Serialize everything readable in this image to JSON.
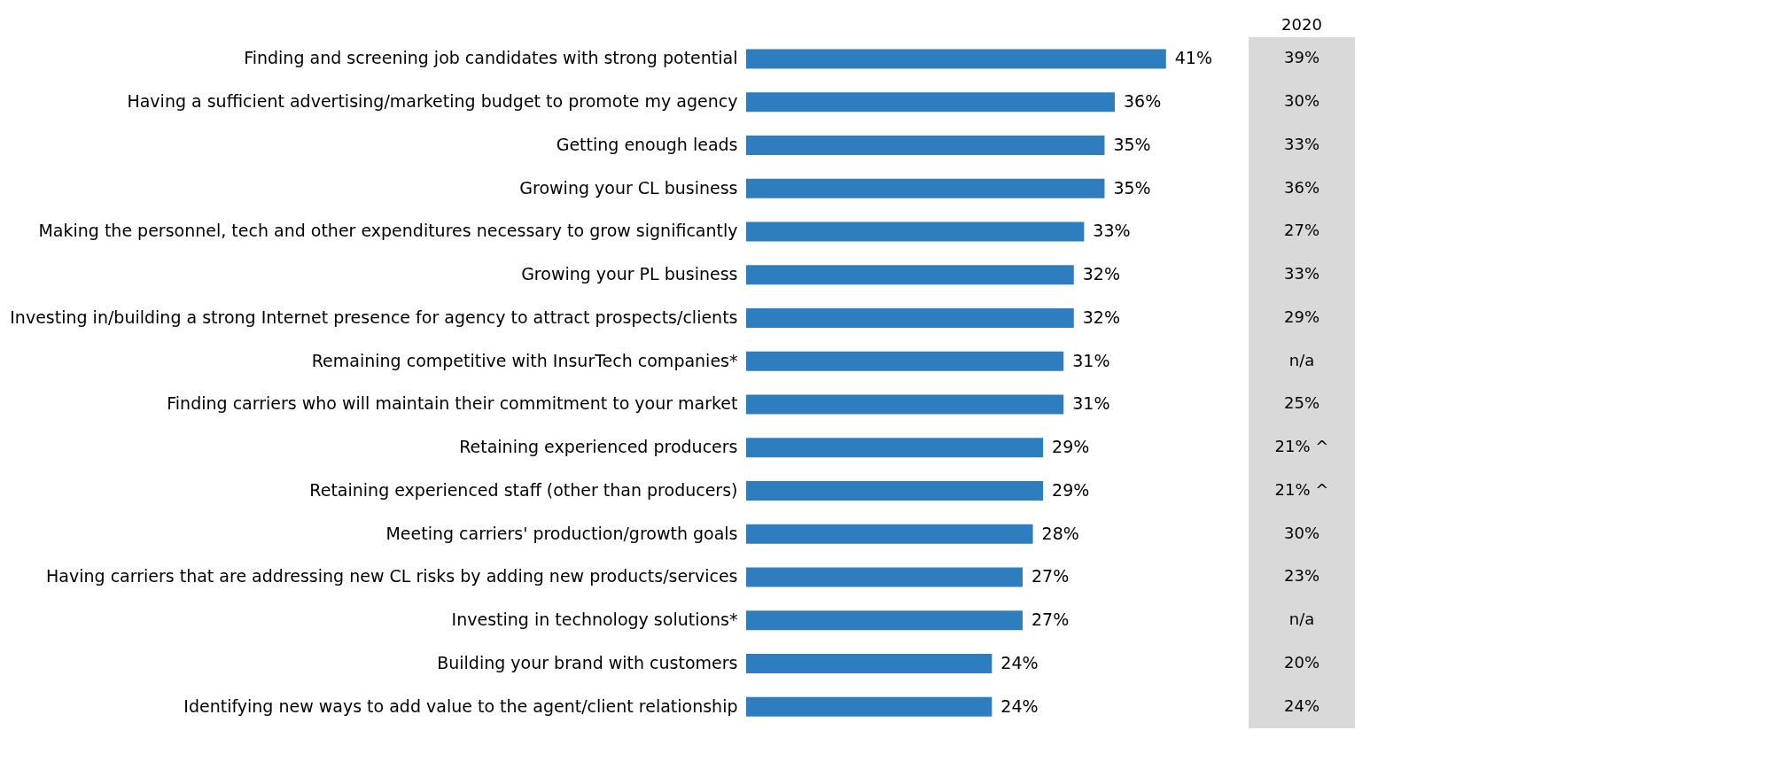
{
  "chart_data": {
    "type": "bar",
    "orientation": "horizontal",
    "categories": [
      "Finding and screening job candidates with strong potential",
      "Having a sufficient advertising/marketing budget to promote my agency",
      "Getting enough leads",
      "Growing your CL business",
      "Making the personnel, tech and other expenditures necessary to grow significantly",
      "Growing your PL business",
      "Investing in/building a strong Internet presence for agency to attract prospects/clients",
      "Remaining competitive with InsurTech companies*",
      "Finding carriers who will maintain their commitment to your market",
      "Retaining experienced producers",
      "Retaining experienced staff (other than producers)",
      "Meeting carriers' production/growth goals",
      "Having carriers that are addressing new CL risks by adding new products/services",
      "Investing in technology solutions*",
      "Building your brand with customers",
      "Identifying new ways to add value to the agent/client relationship"
    ],
    "series": [
      {
        "color": "#2e7ebf",
        "values": [
          41,
          36,
          35,
          35,
          33,
          32,
          32,
          31,
          31,
          29,
          29,
          28,
          27,
          27,
          24,
          24
        ],
        "value_labels": [
          "41%",
          "36%",
          "35%",
          "35%",
          "33%",
          "32%",
          "32%",
          "31%",
          "31%",
          "29%",
          "29%",
          "28%",
          "27%",
          "27%",
          "24%",
          "24%"
        ]
      }
    ],
    "annotations": [
      "2020",
      "39%",
      "30%",
      "33%",
      "36%",
      "27%",
      "33%",
      "29%",
      "n/a",
      "25%",
      "21% ^",
      "21% ^",
      "30%",
      "23%",
      "n/a",
      "20%",
      "24%"
    ],
    "grid": false
  }
}
